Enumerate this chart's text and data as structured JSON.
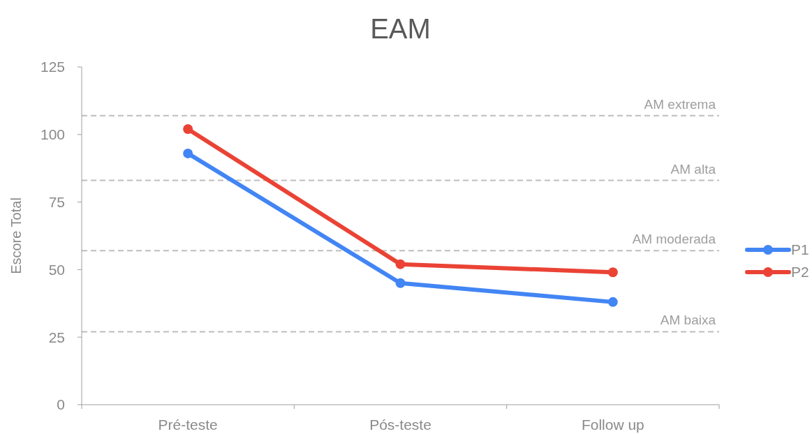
{
  "chart_data": {
    "type": "line",
    "title": "EAM",
    "ylabel": "Escore Total",
    "categories": [
      "Pré-teste",
      "Pós-teste",
      "Follow up"
    ],
    "series": [
      {
        "name": "P1",
        "color": "#4285f4",
        "values": [
          93,
          45,
          38
        ]
      },
      {
        "name": "P2",
        "color": "#ea4335",
        "values": [
          102,
          52,
          49
        ]
      }
    ],
    "ylim": [
      0,
      125
    ],
    "yticks": [
      0,
      25,
      50,
      75,
      100,
      125
    ],
    "marker": "circle",
    "line_style": "solid",
    "legend": "right",
    "grid": false,
    "ref_lines": [
      {
        "axis": "y",
        "value": 107,
        "label": "AM extrema",
        "color": "#bdbdbd",
        "line_style": "dashed"
      },
      {
        "axis": "y",
        "value": 83,
        "label": "AM alta",
        "color": "#bdbdbd",
        "line_style": "dashed"
      },
      {
        "axis": "y",
        "value": 57,
        "label": "AM moderada",
        "color": "#bdbdbd",
        "line_style": "dashed"
      },
      {
        "axis": "y",
        "value": 27,
        "label": "AM baixa",
        "color": "#bdbdbd",
        "line_style": "dashed"
      }
    ]
  }
}
